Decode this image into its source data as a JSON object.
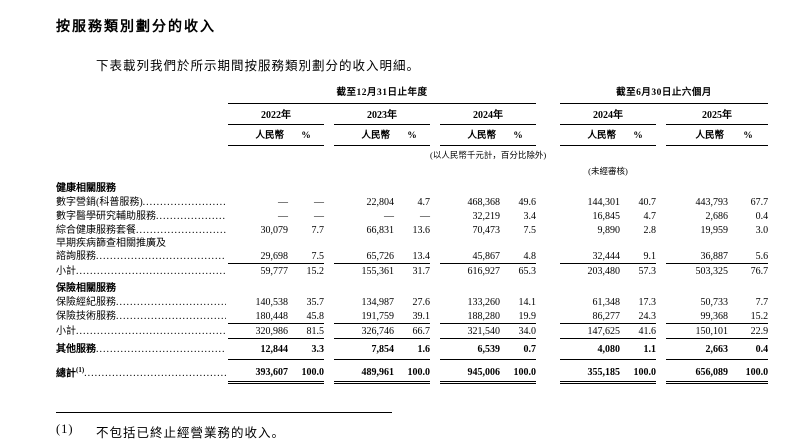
{
  "page": {
    "title": "按服務類別劃分的收入",
    "intro": "下表載列我們於所示期間按服務類別劃分的收入明細。"
  },
  "table": {
    "groups": [
      {
        "label": "截至12月31日止年度",
        "years": [
          "2022年",
          "2023年",
          "2024年"
        ]
      },
      {
        "label": "截至6月30日止六個月",
        "years": [
          "2024年",
          "2025年"
        ]
      }
    ],
    "currency_header": "人民幣",
    "percent_header": "%",
    "unit_note": "(以人民幣千元計，百分比除外)",
    "unaudited_note": "(未經審核)",
    "rows": [
      {
        "type": "section",
        "label": "健康相關服務"
      },
      {
        "type": "data",
        "label": "數字營銷(科普服務)",
        "values": [
          "—",
          "—",
          "22,804",
          "4.7",
          "468,368",
          "49.6",
          "144,301",
          "40.7",
          "443,793",
          "67.7"
        ]
      },
      {
        "type": "data",
        "label": "數字醫學研究輔助服務",
        "values": [
          "—",
          "—",
          "—",
          "—",
          "32,219",
          "3.4",
          "16,845",
          "4.7",
          "2,686",
          "0.4"
        ]
      },
      {
        "type": "data",
        "label": "綜合健康服務套餐",
        "values": [
          "30,079",
          "7.7",
          "66,831",
          "13.6",
          "70,473",
          "7.5",
          "9,890",
          "2.8",
          "19,959",
          "3.0"
        ]
      },
      {
        "type": "data",
        "label": "早期疾病篩查相關推廣及",
        "label2": "諮詢服務",
        "values": [
          "29,698",
          "7.5",
          "65,726",
          "13.4",
          "45,867",
          "4.8",
          "32,444",
          "9.1",
          "36,887",
          "5.6"
        ]
      },
      {
        "type": "subtotal",
        "label": "小計",
        "values": [
          "59,777",
          "15.2",
          "155,361",
          "31.7",
          "616,927",
          "65.3",
          "203,480",
          "57.3",
          "503,325",
          "76.7"
        ]
      },
      {
        "type": "section",
        "label": "保險相關服務"
      },
      {
        "type": "data",
        "label": "保險經紀服務",
        "values": [
          "140,538",
          "35.7",
          "134,987",
          "27.6",
          "133,260",
          "14.1",
          "61,348",
          "17.3",
          "50,733",
          "7.7"
        ]
      },
      {
        "type": "data",
        "label": "保險技術服務",
        "values": [
          "180,448",
          "45.8",
          "191,759",
          "39.1",
          "188,280",
          "19.9",
          "86,277",
          "24.3",
          "99,368",
          "15.2"
        ]
      },
      {
        "type": "subtotal",
        "label": "小計",
        "values": [
          "320,986",
          "81.5",
          "326,746",
          "66.7",
          "321,540",
          "34.0",
          "147,625",
          "41.6",
          "150,101",
          "22.9"
        ]
      },
      {
        "type": "other",
        "label": "其他服務",
        "values": [
          "12,844",
          "3.3",
          "7,854",
          "1.6",
          "6,539",
          "0.7",
          "4,080",
          "1.1",
          "2,663",
          "0.4"
        ]
      },
      {
        "type": "total",
        "label": "總計",
        "sup": "(1)",
        "values": [
          "393,607",
          "100.0",
          "489,961",
          "100.0",
          "945,006",
          "100.0",
          "355,185",
          "100.0",
          "656,089",
          "100.0"
        ]
      }
    ]
  },
  "footnote": {
    "marker": "(1)",
    "text": "不包括已終止經營業務的收入。"
  }
}
